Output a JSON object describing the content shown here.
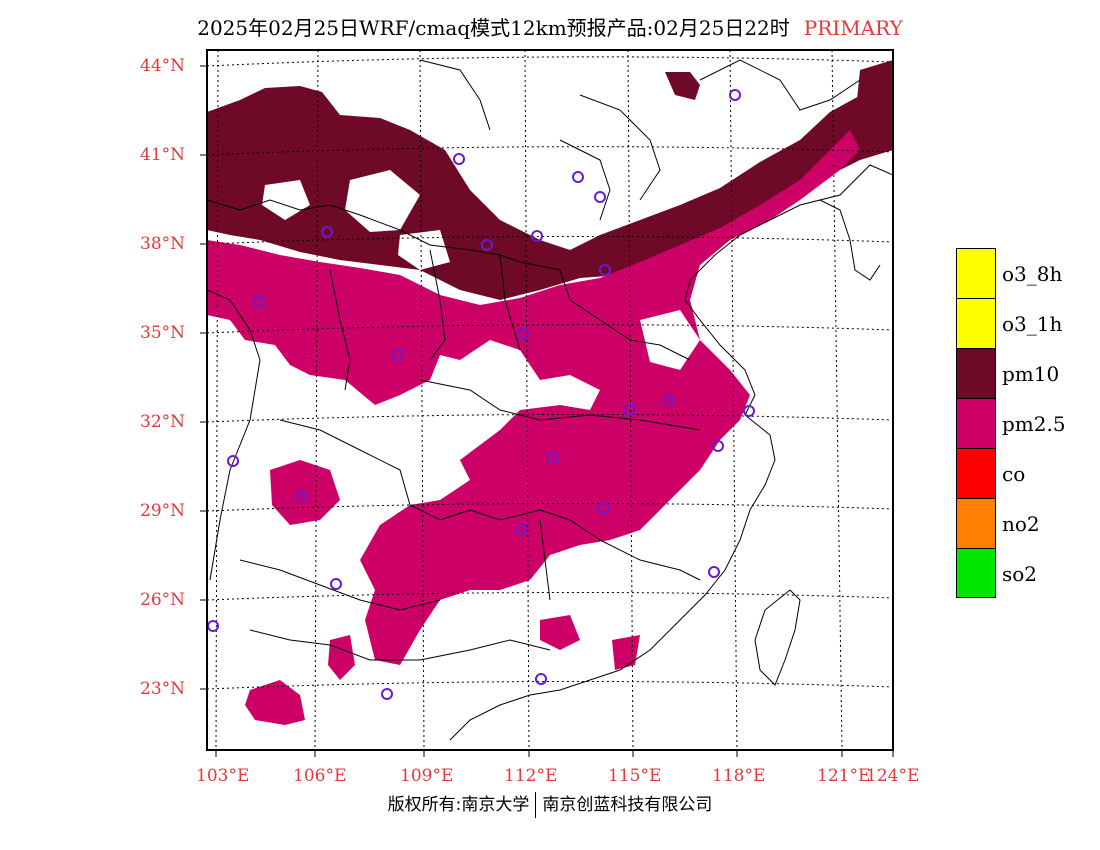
{
  "title": {
    "text": "2025年02月25日WRF/cmaq模式12km预报产品:02月25日22时",
    "tag": "PRIMARY"
  },
  "map": {
    "lon_range": [
      103,
      124
    ],
    "lat_range": [
      21,
      44.5
    ],
    "lat_ticks": [
      "44°N",
      "41°N",
      "38°N",
      "35°N",
      "32°N",
      "29°N",
      "26°N",
      "23°N"
    ],
    "lon_ticks": [
      "103°E",
      "106°E",
      "109°E",
      "112°E",
      "115°E",
      "118°E",
      "121°E",
      "124°E"
    ]
  },
  "legend": [
    {
      "label": "o3_8h",
      "color": "#ffff00"
    },
    {
      "label": "o3_1h",
      "color": "#ffff00"
    },
    {
      "label": "pm10",
      "color": "#6e0a28"
    },
    {
      "label": "pm2.5",
      "color": "#cc0066"
    },
    {
      "label": "co",
      "color": "#ff0000"
    },
    {
      "label": "no2",
      "color": "#ff7f00"
    },
    {
      "label": "so2",
      "color": "#00e600"
    }
  ],
  "footer": {
    "left": "版权所有:南京大学",
    "right": "南京创蓝科技有限公司"
  },
  "colors": {
    "axis_label": "#e23a3a",
    "pm10": "#6e0a28",
    "pm25": "#cc0066",
    "station_marker": "#6a1bd1"
  }
}
